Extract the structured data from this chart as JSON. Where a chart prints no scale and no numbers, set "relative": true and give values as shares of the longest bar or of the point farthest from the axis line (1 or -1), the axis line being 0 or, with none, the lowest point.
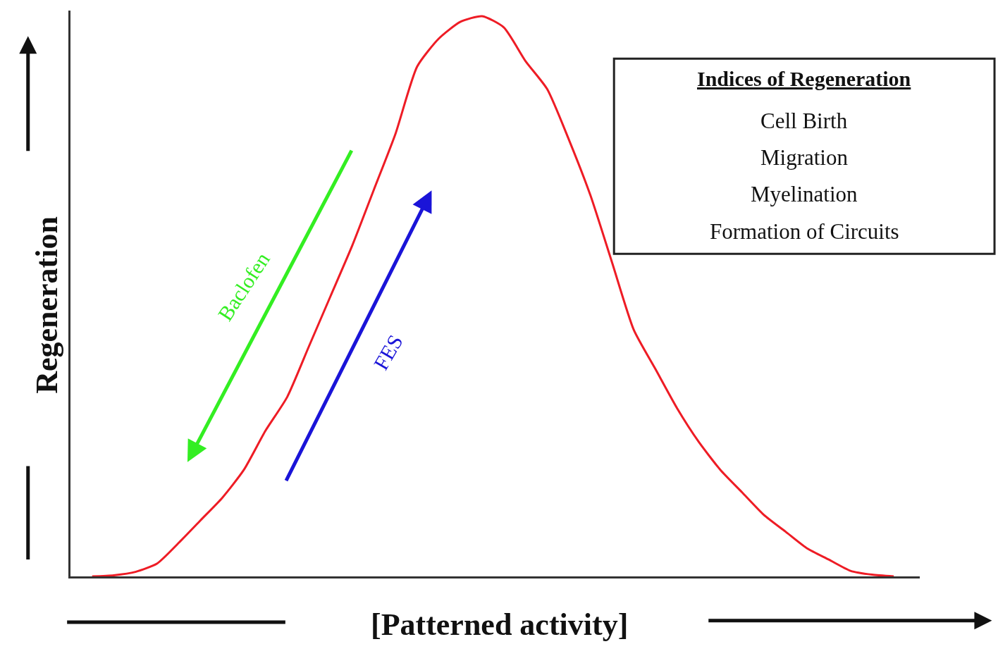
{
  "chart_data": {
    "type": "line",
    "relative": true,
    "xlabel": "[Patterned activity]",
    "ylabel": "Regeneration",
    "categories": [
      null,
      null,
      null,
      null,
      null,
      null,
      null,
      null,
      null,
      null,
      null,
      null,
      null,
      null,
      null,
      null,
      null,
      null,
      null,
      null,
      null,
      null,
      null,
      null,
      null,
      null,
      null,
      null,
      null,
      null,
      null,
      null,
      null,
      null,
      null,
      null,
      null,
      null
    ],
    "series": [
      {
        "color": "#ee1c25",
        "values": [
          0,
          0.002,
          0.008,
          0.023,
          0.06,
          0.1,
          0.14,
          0.19,
          0.26,
          0.32,
          0.41,
          0.5,
          0.59,
          0.69,
          0.79,
          0.91,
          0.96,
          0.99,
          1,
          0.98,
          0.92,
          0.87,
          0.78,
          0.68,
          0.56,
          0.44,
          0.37,
          0.3,
          0.24,
          0.19,
          0.15,
          0.11,
          0.08,
          0.05,
          0.03,
          0.01,
          0.003,
          0
        ]
      }
    ],
    "annotations": [
      "Indices of Regeneration",
      "Cell Birth",
      "Migration",
      "Myelination",
      "Formation of Circuits",
      "Baclofen",
      "FES"
    ],
    "legend": false,
    "tick_labels": false
  }
}
